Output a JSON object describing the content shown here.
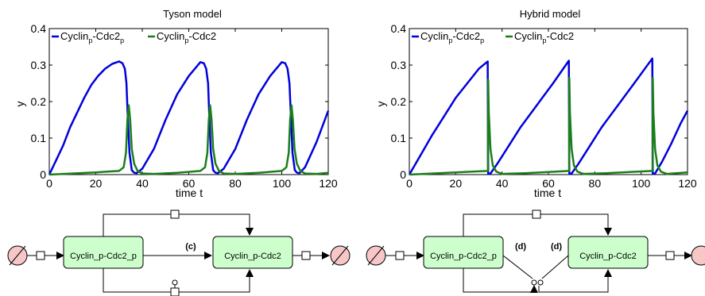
{
  "chart_data": [
    {
      "type": "line",
      "title": "Tyson model",
      "xlabel": "time t",
      "ylabel": "y",
      "xlim": [
        0,
        120
      ],
      "ylim": [
        0,
        0.4
      ],
      "xticks": [
        0,
        20,
        40,
        60,
        80,
        100,
        120
      ],
      "yticks": [
        0,
        0.1,
        0.2,
        0.3,
        0.4
      ],
      "legend_position": "top-left",
      "series": [
        {
          "name": "Cyclin_p-Cdc2_p",
          "color": "#0000dd",
          "x": [
            0,
            3,
            6,
            9,
            12,
            15,
            18,
            21,
            24,
            27,
            30,
            31.5,
            32.5,
            33.2,
            33.8,
            34.5,
            35.5,
            36.5,
            37.5,
            40,
            45,
            50,
            55,
            60,
            65,
            66.5,
            67.5,
            68.3,
            68.9,
            69.5,
            70.5,
            71.5,
            72.5,
            75,
            80,
            85,
            90,
            95,
            100,
            101.5,
            102.5,
            103.3,
            104,
            104.6,
            105.6,
            106.6,
            107.6,
            110,
            115,
            120
          ],
          "y": [
            0,
            0.04,
            0.08,
            0.13,
            0.17,
            0.21,
            0.245,
            0.27,
            0.29,
            0.303,
            0.31,
            0.305,
            0.29,
            0.25,
            0.15,
            0.06,
            0.012,
            0.005,
            0.004,
            0.016,
            0.07,
            0.15,
            0.22,
            0.27,
            0.308,
            0.305,
            0.29,
            0.25,
            0.15,
            0.06,
            0.012,
            0.005,
            0.004,
            0.016,
            0.07,
            0.15,
            0.22,
            0.27,
            0.308,
            0.305,
            0.29,
            0.25,
            0.15,
            0.06,
            0.012,
            0.005,
            0.004,
            0.02,
            0.09,
            0.175
          ]
        },
        {
          "name": "Cyclin_p-Cdc2",
          "color": "#1a7f1a",
          "x": [
            0,
            10,
            20,
            30,
            32,
            33,
            33.6,
            34.2,
            34.8,
            35.5,
            36.5,
            38,
            40,
            45,
            55,
            65,
            67,
            68,
            68.6,
            69.2,
            69.8,
            70.5,
            71.5,
            73,
            75,
            80,
            90,
            100,
            102,
            103,
            103.6,
            104.2,
            104.8,
            105.5,
            106.5,
            108,
            110,
            115,
            120
          ],
          "y": [
            0,
            0.003,
            0.006,
            0.01,
            0.02,
            0.06,
            0.15,
            0.19,
            0.15,
            0.07,
            0.03,
            0.01,
            0.003,
            0.002,
            0.005,
            0.01,
            0.02,
            0.06,
            0.15,
            0.19,
            0.15,
            0.07,
            0.03,
            0.01,
            0.003,
            0.002,
            0.005,
            0.01,
            0.02,
            0.06,
            0.15,
            0.19,
            0.15,
            0.07,
            0.03,
            0.01,
            0.003,
            0.002,
            0.005
          ]
        }
      ]
    },
    {
      "type": "line",
      "title": "Hybrid model",
      "xlabel": "time t",
      "ylabel": "y",
      "xlim": [
        0,
        120
      ],
      "ylim": [
        0,
        0.4
      ],
      "xticks": [
        0,
        20,
        40,
        60,
        80,
        100,
        120
      ],
      "yticks": [
        0,
        0.1,
        0.2,
        0.3,
        0.4
      ],
      "legend_position": "top-left",
      "series": [
        {
          "name": "Cyclin_p-Cdc2_p",
          "color": "#0000dd",
          "x": [
            0,
            5,
            10,
            15,
            20,
            25,
            30,
            33.8,
            34,
            35,
            38,
            42,
            48,
            55,
            62,
            68.8,
            69,
            70,
            73,
            77,
            83,
            90,
            97,
            104.8,
            105,
            106,
            109,
            113,
            117,
            120
          ],
          "y": [
            0,
            0.055,
            0.11,
            0.16,
            0.21,
            0.25,
            0.29,
            0.31,
            0.002,
            0.003,
            0.03,
            0.07,
            0.13,
            0.19,
            0.25,
            0.312,
            0.002,
            0.003,
            0.03,
            0.07,
            0.13,
            0.19,
            0.25,
            0.318,
            0.002,
            0.003,
            0.035,
            0.085,
            0.14,
            0.175
          ]
        },
        {
          "name": "Cyclin_p-Cdc2",
          "color": "#1a7f1a",
          "x": [
            0,
            10,
            20,
            30,
            33.9,
            34,
            34.3,
            35,
            36,
            37.5,
            40,
            50,
            60,
            68.9,
            69,
            69.3,
            70,
            71,
            72.5,
            75,
            85,
            95,
            104.9,
            105,
            105.3,
            106,
            107,
            108.5,
            111,
            120
          ],
          "y": [
            0,
            0.003,
            0.006,
            0.009,
            0.01,
            0.26,
            0.17,
            0.07,
            0.025,
            0.008,
            0.002,
            0.004,
            0.007,
            0.01,
            0.265,
            0.17,
            0.07,
            0.025,
            0.008,
            0.002,
            0.004,
            0.007,
            0.01,
            0.265,
            0.17,
            0.07,
            0.025,
            0.008,
            0.002,
            0.006
          ]
        }
      ]
    }
  ],
  "diagrams": [
    {
      "node_a": "Cyclin_p-Cdc2_p",
      "node_b": "Cyclin_p-Cdc2",
      "edge_label_b": "(c)"
    },
    {
      "node_a": "Cyclin_p-Cdc2_p",
      "node_b": "Cyclin_p-Cdc2",
      "edge_label_a": "(d)",
      "edge_label_b": "(d)"
    }
  ],
  "colors": {
    "node_fill": "#ccffcc",
    "sink_fill": "#f7c6c6"
  }
}
